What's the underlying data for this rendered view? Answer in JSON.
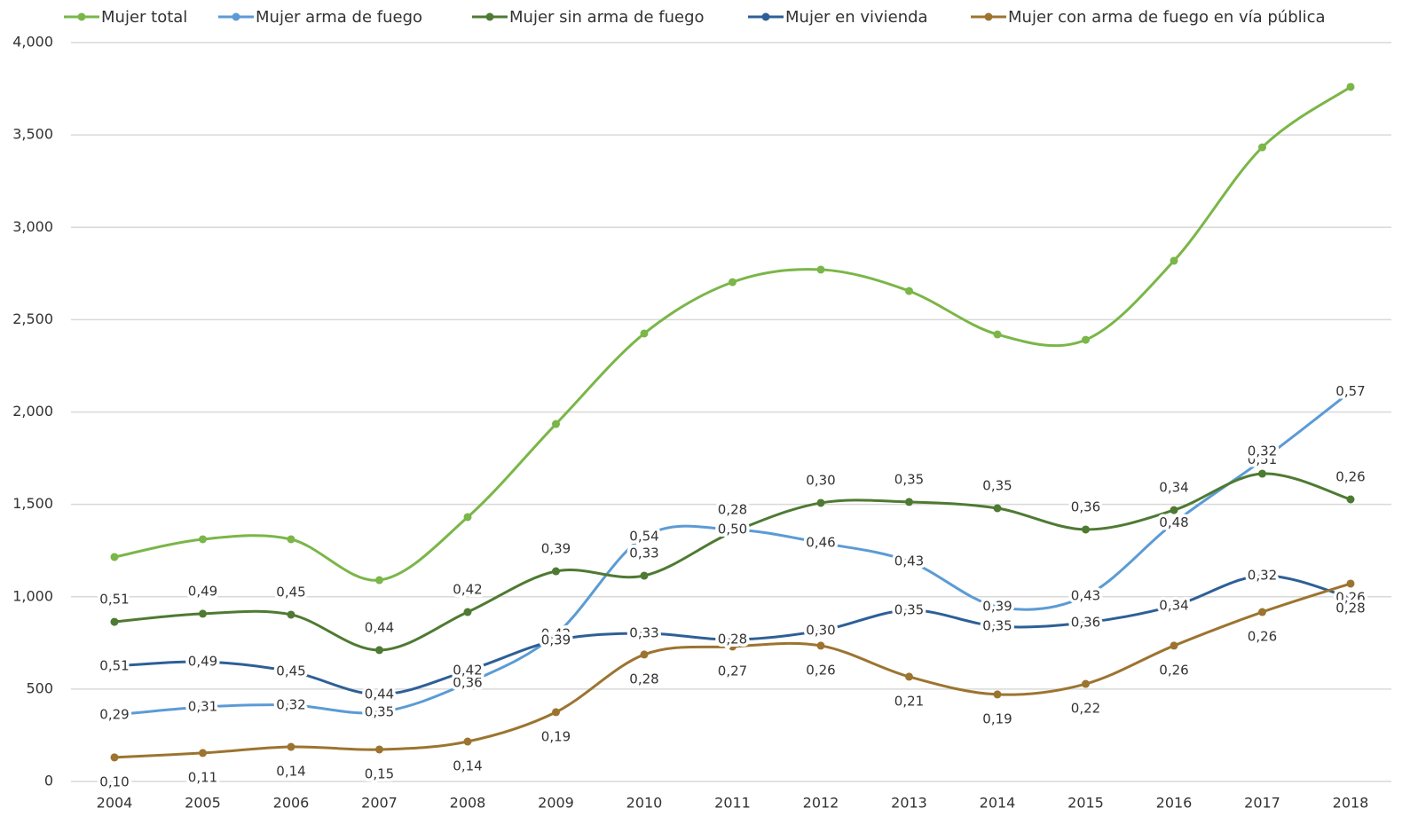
{
  "chart_data": {
    "type": "line",
    "categories": [
      "2004",
      "2005",
      "2006",
      "2007",
      "2008",
      "2009",
      "2010",
      "2011",
      "2012",
      "2013",
      "2014",
      "2015",
      "2016",
      "2017",
      "2018"
    ],
    "ylim": [
      0,
      4000
    ],
    "yticks": [
      0,
      500,
      {
        "value": 1000,
        "label": "1,000"
      },
      {
        "value": 1500,
        "label": "1,500"
      },
      {
        "value": 2000,
        "label": "2,000"
      },
      {
        "value": 2500,
        "label": "2,500"
      },
      {
        "value": 3000,
        "label": "3,000"
      },
      {
        "value": 3500,
        "label": "3,500"
      },
      {
        "value": 4000,
        "label": "4,000"
      }
    ],
    "grid": true,
    "legend": "top",
    "series": [
      {
        "name": "Mujer total",
        "color": "#7ab648",
        "markers": true,
        "values": [
          1215,
          1311,
          1311,
          1090,
          1431,
          1935,
          2425,
          2703,
          2771,
          2655,
          2420,
          2391,
          2819,
          3433,
          3760
        ]
      },
      {
        "name": "Mujer arma de fuego",
        "color": "#5b9bd5",
        "markers": false,
        "values": [
          360,
          403,
          413,
          375,
          533,
          797,
          1325,
          1364,
          1292,
          1191,
          946,
          1004,
          1400,
          1740,
          2110
        ],
        "shares": [
          "0,29",
          "0,31",
          "0,32",
          "0,35",
          "0,36",
          "0,42",
          "0,54",
          "0,50",
          "0,46",
          "0,43",
          "0,39",
          "0,43",
          "0,48",
          "0,51",
          "0,57"
        ]
      },
      {
        "name": "Mujer sin arma de fuego",
        "color": "#4e7a33",
        "markers": true,
        "values": [
          864,
          908,
          903,
          711,
          917,
          1138,
          1114,
          1349,
          1508,
          1513,
          1479,
          1364,
          1469,
          1666,
          1527
        ],
        "shares": [
          "0,51",
          "0,49",
          "0,45",
          "0,44",
          "0,42",
          "0,39",
          "0,33",
          "0,28",
          "0,30",
          "0,35",
          "0,35",
          "0,36",
          "0,34",
          "0,32",
          "0,26"
        ]
      },
      {
        "name": "Mujer en vivienda",
        "color": "#2e5f96",
        "markers": false,
        "values": [
          624,
          648,
          595,
          471,
          600,
          764,
          802,
          768,
          816,
          927,
          840,
          860,
          951,
          1114,
          994
        ],
        "shares": [
          "0,51",
          "0,49",
          "0,45",
          "0,44",
          "0,42",
          "0,39",
          "0,33",
          "0,28",
          "0,30",
          "0,35",
          "0,35",
          "0,36",
          "0,34",
          "0,32",
          "0,26"
        ]
      },
      {
        "name": "Mujer con arma de fuego en vía pública",
        "color": "#9c7430",
        "markers": true,
        "values": [
          130,
          154,
          187,
          173,
          216,
          375,
          687,
          730,
          735,
          567,
          471,
          528,
          735,
          917,
          1071
        ],
        "shares": [
          "0,10",
          "0,11",
          "0,14",
          "0,15",
          "0,14",
          "0,19",
          "0,28",
          "0,27",
          "0,26",
          "0,21",
          "0,19",
          "0,22",
          "0,26",
          "0,26",
          "0,28"
        ]
      }
    ]
  }
}
